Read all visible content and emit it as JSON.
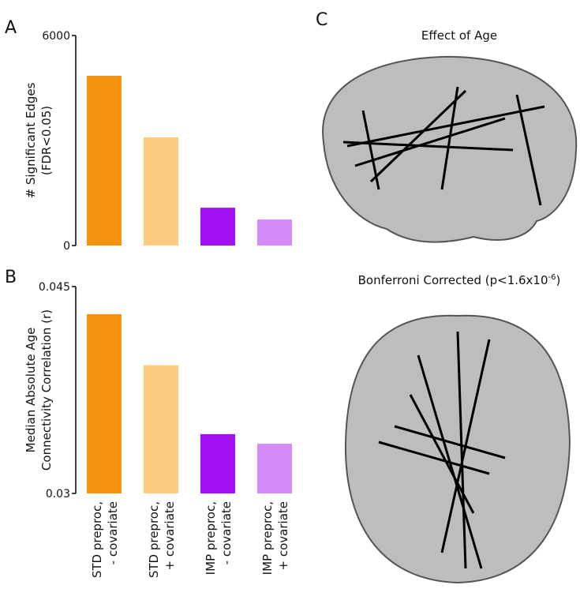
{
  "chart_data": [
    {
      "type": "bar",
      "panel": "A",
      "ylabel": [
        "# Significant Edges",
        "(FDR<0.05)"
      ],
      "categories": [
        null,
        null,
        null,
        null
      ],
      "values": [
        4850,
        3090,
        1080,
        745
      ],
      "colors": [
        "#f7930f",
        "#fbcb7f",
        "#a20ff2",
        "#d58bf8"
      ],
      "ylim": [
        0,
        6000
      ],
      "yticks": [
        0,
        6000
      ],
      "grid": false
    },
    {
      "type": "bar",
      "panel": "B",
      "ylabel": [
        "Median Absolute Age",
        "Connectivity Correlation (r)"
      ],
      "categories": [
        [
          "STD preproc,",
          "- covariate"
        ],
        [
          "STD preproc,",
          "+ covariate"
        ],
        [
          "IMP preproc,",
          "- covariate"
        ],
        [
          "IMP preproc,",
          "+ covariate"
        ]
      ],
      "values": [
        0.043,
        0.0393,
        0.0343,
        0.0336
      ],
      "colors": [
        "#f7930f",
        "#fbcb7f",
        "#a20ff2",
        "#d58bf8"
      ],
      "ylim": [
        0.03,
        0.045
      ],
      "yticks": [
        0.03,
        0.045
      ],
      "grid": false
    }
  ],
  "panel_c": {
    "label": "C",
    "top_title": "Effect of Age",
    "bottom_title": [
      "Bonferroni Corrected (p<1.6x10",
      "-6",
      ")"
    ]
  }
}
